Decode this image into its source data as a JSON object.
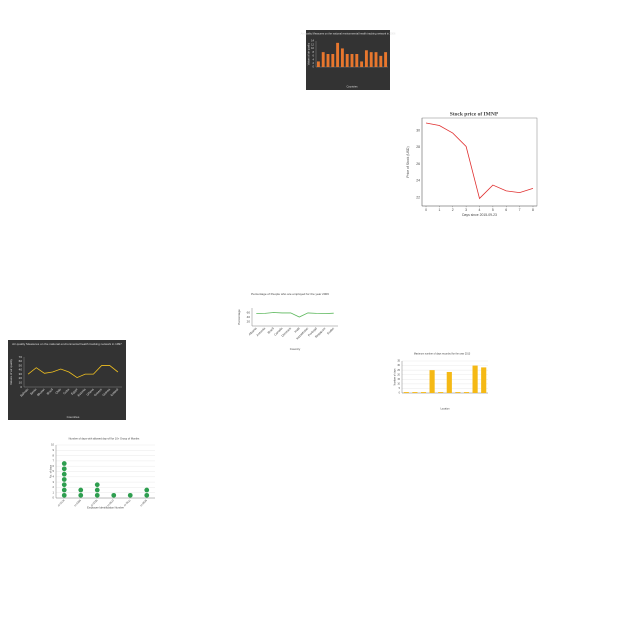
{
  "chart_data": [
    {
      "type": "bar",
      "title": "Air quality Measures on the national environmental health tracking network in 2006",
      "xlabel": "Countries",
      "ylabel": "Values of air quality",
      "categories": [
        null,
        null,
        null,
        null,
        null,
        null,
        null,
        null,
        null,
        null,
        null,
        null,
        null,
        null,
        null
      ],
      "values": [
        3,
        8,
        7,
        7,
        13,
        10,
        7,
        7,
        7,
        3,
        9,
        8,
        8,
        6,
        8
      ],
      "color": "#e8772e",
      "background": "#333333",
      "ylim": [
        0,
        14
      ],
      "yticks": [
        0,
        2,
        4,
        6,
        8,
        10,
        12,
        14
      ],
      "grid": false
    },
    {
      "type": "line",
      "title": "Stock price of IMNP",
      "xlabel": "Days since 2015-09-23",
      "ylabel": "Price of Stock (USD)",
      "x": [
        0,
        1,
        2,
        3,
        4,
        5,
        6,
        7,
        8
      ],
      "values": [
        30.9,
        30.6,
        29.7,
        28.1,
        21.9,
        23.5,
        22.8,
        22.6,
        23.1
      ],
      "color": "#e03030",
      "background": "#ffffff",
      "xlim": [
        -0.3,
        8.3
      ],
      "xticks": [
        0,
        1,
        2,
        3,
        4,
        5,
        6,
        7,
        8
      ],
      "ylim": [
        21,
        31.5
      ],
      "yticks": [
        22,
        24,
        26,
        28,
        30
      ],
      "grid": false
    },
    {
      "type": "line",
      "title": "Percentage of People who are employed for the year 2006",
      "xlabel": "Country",
      "ylabel": "Percentage",
      "categories": [
        "Albania",
        "Armenia",
        "Brazil",
        "Canada",
        "Denmark",
        "Haiti",
        "Kazakhstan",
        "Portugal",
        "Singapore",
        "Sudan"
      ],
      "values": [
        55,
        56,
        60,
        58,
        58,
        40,
        58,
        56,
        55,
        57
      ],
      "color": "#5cb85c",
      "background": "#ffffff",
      "ylim": [
        0,
        80
      ],
      "yticks": [
        20,
        40,
        60
      ],
      "grid": false
    },
    {
      "type": "line",
      "title": "Air quality Measures on the national environmental health tracking network in 1997",
      "xlabel": "Countries",
      "ylabel": "Values of air quality",
      "categories": [
        "Bahrain",
        "Benin",
        "Bhutan",
        "Brazil",
        "Chile",
        "Cuba",
        "Egypt",
        "Estonia",
        "Ghana",
        "Greece",
        "Guinea",
        "Iceland"
      ],
      "values": [
        30,
        45,
        32,
        35,
        42,
        35,
        22,
        30,
        30,
        50,
        50,
        35
      ],
      "color": "#f0c020",
      "background": "#333333",
      "ylim": [
        0,
        70
      ],
      "yticks": [
        0,
        10,
        20,
        30,
        40,
        50,
        60,
        70
      ],
      "grid": false
    },
    {
      "type": "bar",
      "title": "Maximum number of days recorded for the year 2013",
      "xlabel": "Location",
      "ylabel": "Number of days",
      "categories": [
        null,
        null,
        null,
        null,
        null,
        null,
        null,
        null,
        null,
        null
      ],
      "values": [
        1,
        1,
        1,
        25,
        1,
        23,
        1,
        1,
        30,
        28
      ],
      "color": "#f5b915",
      "background": "#ffffff",
      "ylim": [
        0,
        35
      ],
      "yticks": [
        0,
        5,
        10,
        15,
        20,
        25,
        30,
        35
      ],
      "grid": true
    },
    {
      "type": "dot",
      "title": "Number of days with allowed day-off for 10+ Group of Months",
      "xlabel": "Employee Identification Number",
      "ylabel": "No. of days",
      "categories": [
        "ct-0134",
        "ct-0286",
        "ct-0305",
        "ct-0527",
        "ct-0611",
        "ct-0836"
      ],
      "values": [
        7,
        2,
        3,
        1,
        1,
        2
      ],
      "color": "#2e9e4f",
      "background": "#ffffff",
      "ylim": [
        0,
        10
      ],
      "yticks": [
        0,
        1,
        2,
        3,
        4,
        5,
        6,
        7,
        8,
        9,
        10
      ],
      "grid": true
    }
  ]
}
